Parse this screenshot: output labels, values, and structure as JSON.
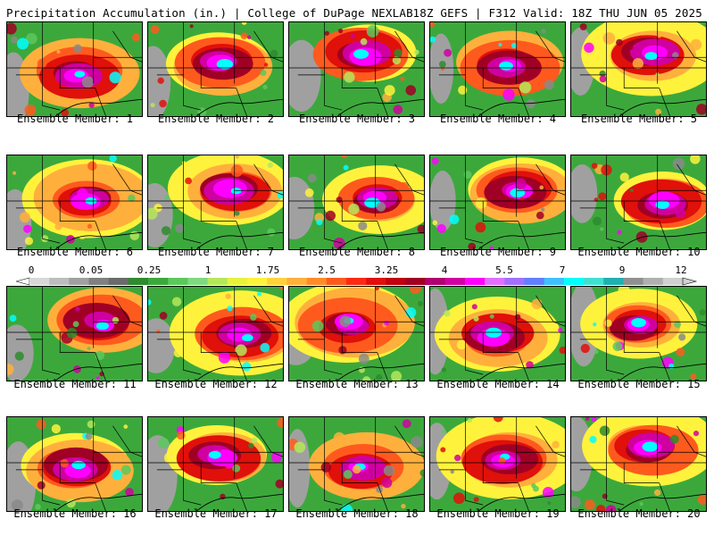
{
  "header": {
    "left": "Precipitation Accumulation (in.) | College of DuPage NEXLAB",
    "right": "18Z GEFS | F312 Valid: 18Z THU JUN 05 2025"
  },
  "caption_prefix": "Ensemble Member: ",
  "members": [
    {
      "label": "Ensemble Member: 1"
    },
    {
      "label": "Ensemble Member: 2"
    },
    {
      "label": "Ensemble Member: 3"
    },
    {
      "label": "Ensemble Member: 4"
    },
    {
      "label": "Ensemble Member: 5"
    },
    {
      "label": "Ensemble Member: 6"
    },
    {
      "label": "Ensemble Member: 7"
    },
    {
      "label": "Ensemble Member: 8"
    },
    {
      "label": "Ensemble Member: 9"
    },
    {
      "label": "Ensemble Member: 10"
    },
    {
      "label": "Ensemble Member: 11"
    },
    {
      "label": "Ensemble Member: 12"
    },
    {
      "label": "Ensemble Member: 13"
    },
    {
      "label": "Ensemble Member: 14"
    },
    {
      "label": "Ensemble Member: 15"
    },
    {
      "label": "Ensemble Member: 16"
    },
    {
      "label": "Ensemble Member: 17"
    },
    {
      "label": "Ensemble Member: 18"
    },
    {
      "label": "Ensemble Member: 19"
    },
    {
      "label": "Ensemble Member: 20"
    }
  ],
  "colorbar": {
    "labels": [
      "0",
      "0.05",
      "0.25",
      "1",
      "1.75",
      "2.5",
      "3.25",
      "4",
      "5.5",
      "7",
      "9",
      "12"
    ],
    "colors": [
      "#d8d8d8",
      "#bdbdbd",
      "#a0a0a0",
      "#808080",
      "#6a6a6a",
      "#2e8b2e",
      "#3ca83c",
      "#5cc85c",
      "#7fd97f",
      "#b4e85a",
      "#e8f23c",
      "#fff23c",
      "#ffd23c",
      "#ffb03c",
      "#ff8c28",
      "#ff5a1e",
      "#ff2a14",
      "#e0100a",
      "#c00010",
      "#a00024",
      "#b00070",
      "#d000a0",
      "#ff00ff",
      "#e070ff",
      "#a070ff",
      "#6080ff",
      "#40c0ff",
      "#00ffff",
      "#40e0d0",
      "#20b0b0",
      "#909090",
      "#b0b0b0",
      "#d0d0d0"
    ]
  }
}
